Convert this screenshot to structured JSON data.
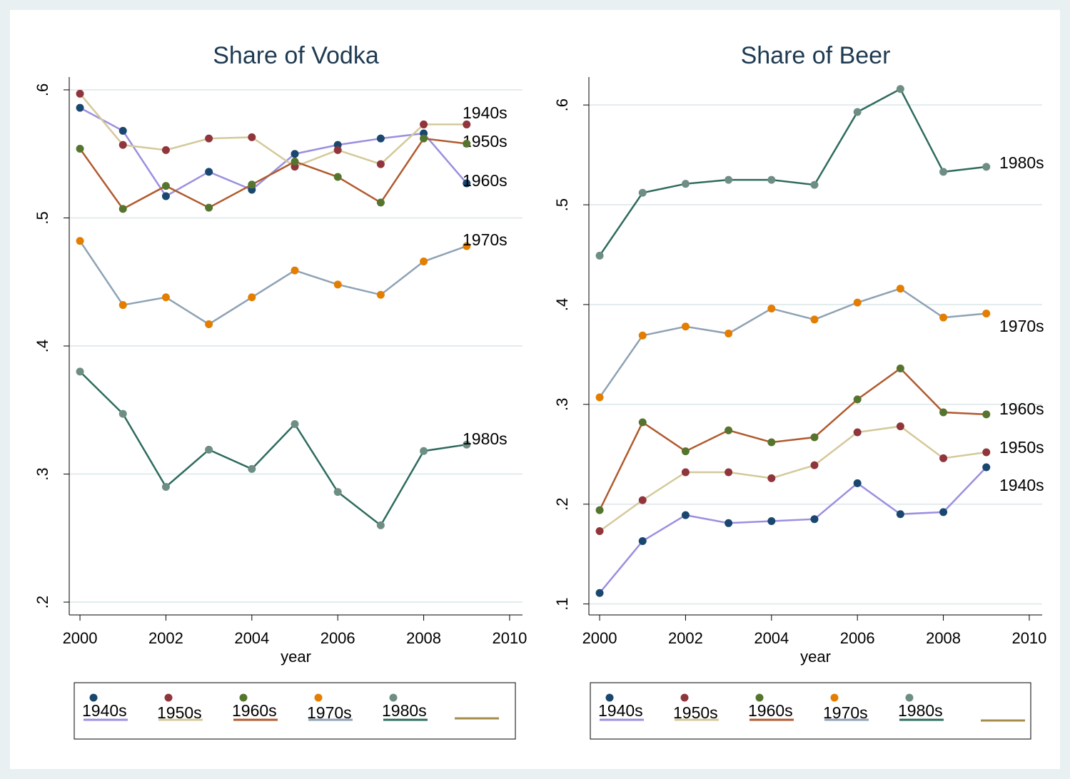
{
  "chart_data": [
    {
      "type": "line",
      "title": "Share of Vodka",
      "xlabel": "year",
      "x": [
        2000,
        2001,
        2002,
        2003,
        2004,
        2005,
        2006,
        2007,
        2008,
        2009
      ],
      "xlim": [
        1999.75,
        2010.3
      ],
      "xticks": [
        2000,
        2002,
        2004,
        2006,
        2008,
        2010
      ],
      "ylim": [
        0.19,
        0.61
      ],
      "yticks": [
        {
          "value": 0.2,
          "label": ".2"
        },
        {
          "value": 0.3,
          "label": ".3"
        },
        {
          "value": 0.4,
          "label": ".4"
        },
        {
          "value": 0.5,
          "label": ".5"
        },
        {
          "value": 0.6,
          "label": ".6"
        }
      ],
      "grid": true,
      "series": [
        {
          "name": "1940s",
          "color": "#9b8fe0",
          "marker_color": "#1a476f",
          "values": [
            0.586,
            0.568,
            0.517,
            0.536,
            0.522,
            0.55,
            0.557,
            0.562,
            0.566,
            0.527
          ]
        },
        {
          "name": "1950s",
          "color": "#d4c99a",
          "marker_color": "#90353b",
          "values": [
            0.597,
            0.557,
            0.553,
            0.562,
            0.563,
            0.54,
            0.553,
            0.542,
            0.573,
            0.573
          ]
        },
        {
          "name": "1960s",
          "color": "#b05a2e",
          "marker_color": "#55752f",
          "values": [
            0.554,
            0.507,
            0.525,
            0.508,
            0.526,
            0.544,
            0.532,
            0.512,
            0.562,
            0.558
          ]
        },
        {
          "name": "1970s",
          "color": "#8ea2b5",
          "marker_color": "#e37e00",
          "values": [
            0.482,
            0.432,
            0.438,
            0.417,
            0.438,
            0.459,
            0.448,
            0.44,
            0.466,
            0.478
          ]
        },
        {
          "name": "1980s",
          "color": "#2e6b5e",
          "marker_color": "#6e8e84",
          "values": [
            0.38,
            0.347,
            0.29,
            0.319,
            0.304,
            0.339,
            0.286,
            0.26,
            0.318,
            0.323
          ]
        }
      ]
    },
    {
      "type": "line",
      "title": "Share of Beer",
      "xlabel": "year",
      "x": [
        2000,
        2001,
        2002,
        2003,
        2004,
        2005,
        2006,
        2007,
        2008,
        2009
      ],
      "xlim": [
        1999.75,
        2010.3
      ],
      "xticks": [
        2000,
        2002,
        2004,
        2006,
        2008,
        2010
      ],
      "ylim": [
        0.089,
        0.628
      ],
      "yticks": [
        {
          "value": 0.1,
          "label": ".1"
        },
        {
          "value": 0.2,
          "label": ".2"
        },
        {
          "value": 0.3,
          "label": ".3"
        },
        {
          "value": 0.4,
          "label": ".4"
        },
        {
          "value": 0.5,
          "label": ".5"
        },
        {
          "value": 0.6,
          "label": ".6"
        }
      ],
      "grid": true,
      "series": [
        {
          "name": "1940s",
          "color": "#9b8fe0",
          "marker_color": "#1a476f",
          "values": [
            0.111,
            0.163,
            0.189,
            0.181,
            0.183,
            0.185,
            0.221,
            0.19,
            0.192,
            0.237
          ]
        },
        {
          "name": "1950s",
          "color": "#d4c99a",
          "marker_color": "#90353b",
          "values": [
            0.173,
            0.204,
            0.232,
            0.232,
            0.226,
            0.239,
            0.272,
            0.278,
            0.246,
            0.252
          ]
        },
        {
          "name": "1960s",
          "color": "#b05a2e",
          "marker_color": "#55752f",
          "values": [
            0.194,
            0.282,
            0.253,
            0.274,
            0.262,
            0.267,
            0.305,
            0.336,
            0.292,
            0.29
          ]
        },
        {
          "name": "1970s",
          "color": "#8ea2b5",
          "marker_color": "#e37e00",
          "values": [
            0.307,
            0.369,
            0.378,
            0.371,
            0.396,
            0.385,
            0.402,
            0.416,
            0.387,
            0.391
          ]
        },
        {
          "name": "1980s",
          "color": "#2e6b5e",
          "marker_color": "#6e8e84",
          "values": [
            0.449,
            0.512,
            0.521,
            0.525,
            0.525,
            0.52,
            0.593,
            0.616,
            0.533,
            0.538
          ]
        }
      ]
    }
  ]
}
